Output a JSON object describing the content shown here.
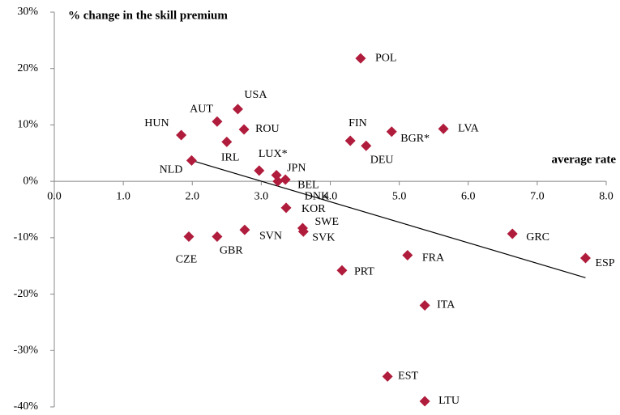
{
  "chart_data": {
    "type": "scatter",
    "title": "% change in the skill premium",
    "x_label": "average rate",
    "color": "#b01c3c",
    "xlim": [
      0,
      8
    ],
    "xticks": [
      {
        "value": 0,
        "label": "0.0"
      },
      {
        "value": 1,
        "label": "1.0"
      },
      {
        "value": 2,
        "label": "2.0"
      },
      {
        "value": 3,
        "label": "3.0"
      },
      {
        "value": 4,
        "label": "4.0"
      },
      {
        "value": 5,
        "label": "5.0"
      },
      {
        "value": 6,
        "label": "6.0"
      },
      {
        "value": 7,
        "label": "7.0"
      },
      {
        "value": 8,
        "label": "8.0"
      }
    ],
    "ylim": [
      -40,
      30
    ],
    "yticks": [
      {
        "value": -40,
        "label": "-40%"
      },
      {
        "value": -30,
        "label": "-30%"
      },
      {
        "value": -20,
        "label": "-20%"
      },
      {
        "value": -10,
        "label": "-10%"
      },
      {
        "value": 0,
        "label": "0%"
      },
      {
        "value": 10,
        "label": "10%"
      },
      {
        "value": 20,
        "label": "20%"
      },
      {
        "value": 30,
        "label": "30%"
      }
    ],
    "labels": [
      "POL",
      "HUN",
      "AUT",
      "USA",
      "ROU",
      "IRL",
      "NLD",
      "LUX*",
      "JPN",
      "BEL",
      "DNK",
      "KOR",
      "SWE",
      "SVK",
      "SVN",
      "GBR",
      "CZE",
      "FIN",
      "DEU",
      "BGR*",
      "LVA",
      "GRC",
      "ESP",
      "FRA",
      "PRT",
      "ITA",
      "EST",
      "LTU"
    ],
    "x": [
      4.44,
      1.84,
      2.36,
      2.66,
      2.75,
      2.5,
      1.99,
      2.97,
      3.22,
      3.35,
      3.24,
      3.36,
      3.6,
      3.61,
      2.76,
      2.36,
      1.95,
      4.29,
      4.52,
      4.89,
      5.64,
      6.64,
      7.7,
      5.12,
      4.17,
      5.37,
      4.83,
      5.37
    ],
    "values": [
      21.8,
      8.2,
      10.6,
      12.8,
      9.2,
      7.0,
      3.7,
      1.9,
      1.1,
      0.3,
      0.0,
      -4.7,
      -8.3,
      -8.9,
      -8.6,
      -9.8,
      -9.8,
      7.2,
      6.3,
      8.8,
      9.3,
      -9.3,
      -13.6,
      -13.1,
      -15.8,
      -22.0,
      -34.6,
      -39.0
    ],
    "trend_line": {
      "x": [
        1.99,
        7.7
      ],
      "y": [
        3.7,
        -17.1
      ]
    }
  }
}
